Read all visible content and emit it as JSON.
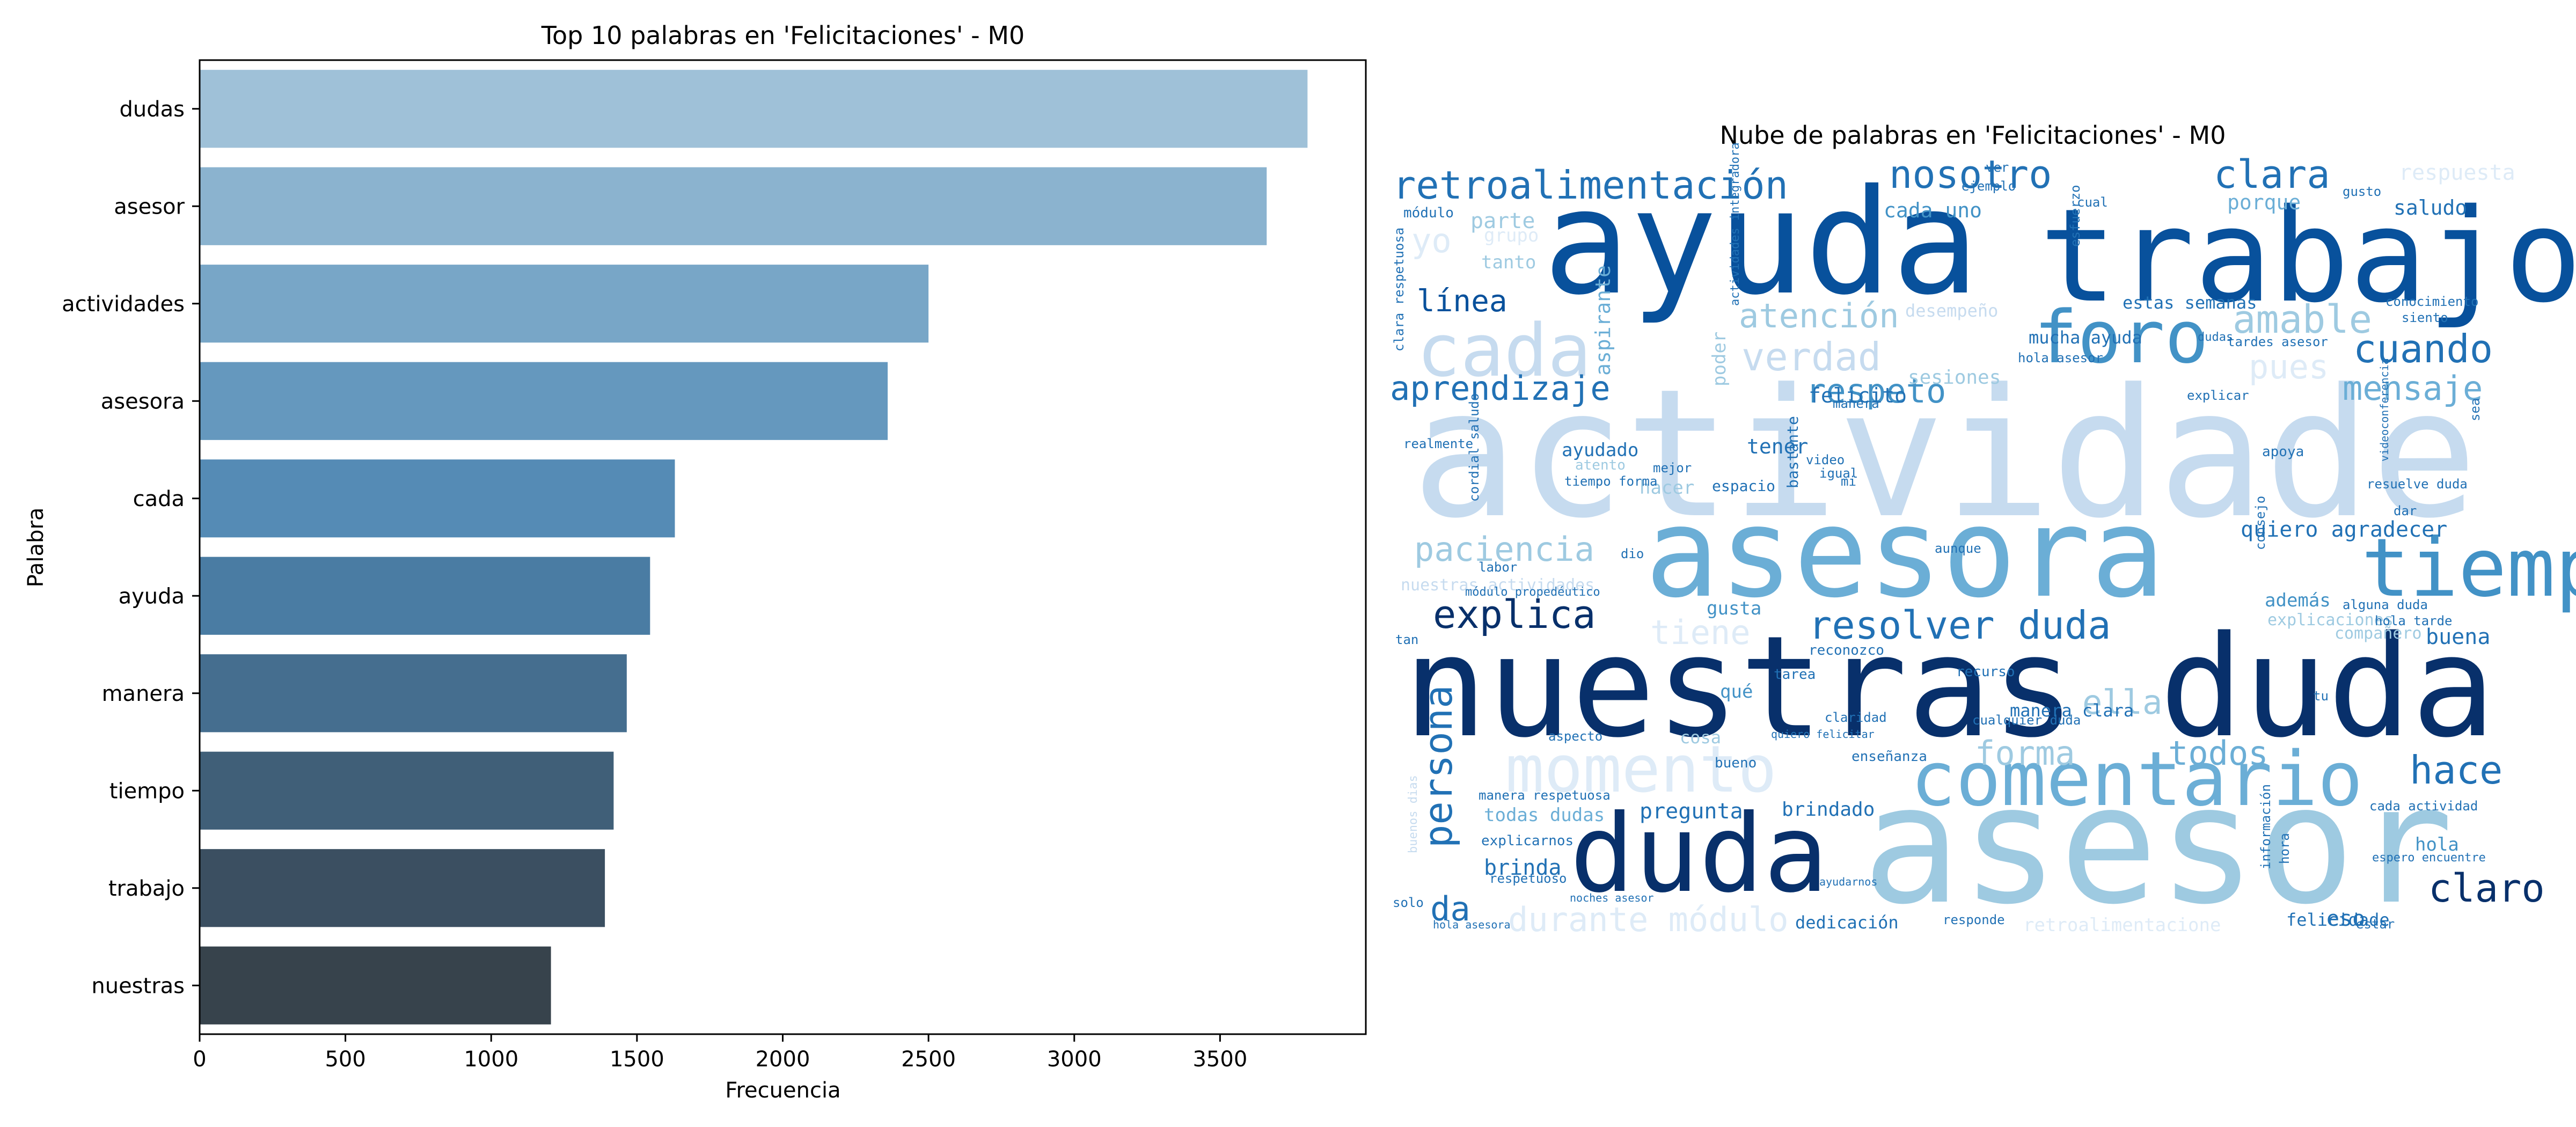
{
  "chart_data": [
    {
      "type": "bar",
      "orientation": "horizontal",
      "title": "Top 10 palabras en 'Felicitaciones' - M0",
      "xlabel": "Frecuencia",
      "ylabel": "Palabra",
      "xlim": [
        0,
        4000
      ],
      "xticks": [
        0,
        500,
        1000,
        1500,
        2000,
        2500,
        3000,
        3500
      ],
      "categories": [
        "dudas",
        "asesor",
        "actividades",
        "asesora",
        "cada",
        "ayuda",
        "manera",
        "tiempo",
        "trabajo",
        "nuestras"
      ],
      "values": [
        3800,
        3660,
        2500,
        2360,
        1630,
        1545,
        1465,
        1420,
        1390,
        1205
      ],
      "colors": [
        "#9fc1d8",
        "#8bb3cf",
        "#78a6c7",
        "#6598be",
        "#558bb5",
        "#4a7ca3",
        "#456e8f",
        "#405f78",
        "#3b4f61",
        "#37434c"
      ],
      "grid": false
    },
    {
      "type": "wordcloud",
      "title": "Nube de palabras en 'Felicitaciones' - M0",
      "colormap": "Blues",
      "words": [
        {
          "text": "actividade",
          "weight": 1.0,
          "color": "#c6dbef"
        },
        {
          "text": "nuestras duda",
          "weight": 0.95,
          "color": "#08306b"
        },
        {
          "text": "ayuda",
          "weight": 0.9,
          "color": "#08519c"
        },
        {
          "text": "trabajo",
          "weight": 0.88,
          "color": "#08519c"
        },
        {
          "text": "asesor",
          "weight": 0.85,
          "color": "#9ecae1"
        },
        {
          "text": "asesora",
          "weight": 0.8,
          "color": "#6baed6"
        },
        {
          "text": "duda",
          "weight": 0.72,
          "color": "#08306b"
        },
        {
          "text": "tiempo",
          "weight": 0.6,
          "color": "#4292c6"
        },
        {
          "text": "comentario",
          "weight": 0.5,
          "color": "#6baed6"
        },
        {
          "text": "foro",
          "weight": 0.45,
          "color": "#4292c6"
        },
        {
          "text": "cada",
          "weight": 0.45,
          "color": "#c6dbef"
        },
        {
          "text": "momento",
          "weight": 0.4,
          "color": "#deebf7"
        },
        {
          "text": "retroalimentación",
          "weight": 0.3,
          "color": "#2171b5"
        },
        {
          "text": "nosotro",
          "weight": 0.28,
          "color": "#2171b5"
        },
        {
          "text": "clara",
          "weight": 0.26,
          "color": "#2171b5"
        },
        {
          "text": "persona",
          "weight": 0.26,
          "color": "#2171b5"
        },
        {
          "text": "claro",
          "weight": 0.26,
          "color": "#08306b"
        },
        {
          "text": "explica",
          "weight": 0.26,
          "color": "#08306b"
        },
        {
          "text": "resolver duda",
          "weight": 0.26,
          "color": "#2171b5"
        },
        {
          "text": "cuando",
          "weight": 0.24,
          "color": "#2171b5"
        },
        {
          "text": "verdad",
          "weight": 0.24,
          "color": "#c6dbef"
        },
        {
          "text": "amable",
          "weight": 0.24,
          "color": "#9ecae1"
        },
        {
          "text": "hace",
          "weight": 0.24,
          "color": "#2171b5"
        },
        {
          "text": "todos",
          "weight": 0.22,
          "color": "#6baed6"
        },
        {
          "text": "forma",
          "weight": 0.22,
          "color": "#9ecae1"
        },
        {
          "text": "ella",
          "weight": 0.22,
          "color": "#9ecae1"
        },
        {
          "text": "da",
          "weight": 0.22,
          "color": "#2171b5"
        },
        {
          "text": "durante módulo",
          "weight": 0.22,
          "color": "#deebf7"
        },
        {
          "text": "paciencia",
          "weight": 0.22,
          "color": "#9ecae1"
        },
        {
          "text": "tiene",
          "weight": 0.22,
          "color": "#deebf7"
        },
        {
          "text": "aprendizaje",
          "weight": 0.22,
          "color": "#2171b5"
        },
        {
          "text": "respeto",
          "weight": 0.2,
          "color": "#4292c6"
        },
        {
          "text": "atención",
          "weight": 0.2,
          "color": "#9ecae1"
        },
        {
          "text": "mensaje",
          "weight": 0.2,
          "color": "#6baed6"
        },
        {
          "text": "pues",
          "weight": 0.2,
          "color": "#deebf7"
        },
        {
          "text": "línea",
          "weight": 0.2,
          "color": "#08519c"
        },
        {
          "text": "yo",
          "weight": 0.2,
          "color": "#deebf7"
        },
        {
          "text": "quiero agradecer",
          "weight": 0.14,
          "color": "#2171b5"
        },
        {
          "text": "brinda",
          "weight": 0.14,
          "color": "#2171b5"
        },
        {
          "text": "pregunta",
          "weight": 0.14,
          "color": "#2171b5"
        },
        {
          "text": "brindado",
          "weight": 0.13,
          "color": "#2171b5"
        },
        {
          "text": "buena",
          "weight": 0.13,
          "color": "#2171b5"
        },
        {
          "text": "felicito",
          "weight": 0.12,
          "color": "#2171b5"
        },
        {
          "text": "tener",
          "weight": 0.12,
          "color": "#2171b5"
        },
        {
          "text": "ayudado",
          "weight": 0.12,
          "color": "#2171b5"
        },
        {
          "text": "sesiones",
          "weight": 0.12,
          "color": "#9ecae1"
        },
        {
          "text": "cada uno",
          "weight": 0.12,
          "color": "#4292c6"
        },
        {
          "text": "estas semanas",
          "weight": 0.1,
          "color": "#2171b5"
        },
        {
          "text": "mucha ayuda",
          "weight": 0.1,
          "color": "#2171b5"
        },
        {
          "text": "saludo",
          "weight": 0.1,
          "color": "#2171b5"
        },
        {
          "text": "porque",
          "weight": 0.1,
          "color": "#6baed6"
        },
        {
          "text": "respuesta",
          "weight": 0.1,
          "color": "#deebf7"
        },
        {
          "text": "parte",
          "weight": 0.1,
          "color": "#9ecae1"
        },
        {
          "text": "tanto",
          "weight": 0.1,
          "color": "#9ecae1"
        },
        {
          "text": "hacer",
          "weight": 0.1,
          "color": "#9ecae1"
        },
        {
          "text": "gusta",
          "weight": 0.1,
          "color": "#4292c6"
        },
        {
          "text": "manera clara",
          "weight": 0.1,
          "color": "#2171b5"
        },
        {
          "text": "todas dudas",
          "weight": 0.1,
          "color": "#6baed6"
        },
        {
          "text": "dedicación",
          "weight": 0.1,
          "color": "#2171b5"
        },
        {
          "text": "felicidade",
          "weight": 0.1,
          "color": "#2171b5"
        },
        {
          "text": "eso",
          "weight": 0.1,
          "color": "#2171b5"
        },
        {
          "text": "nuestras actividades",
          "weight": 0.08,
          "color": "#c6dbef"
        },
        {
          "text": "desempeño",
          "weight": 0.08,
          "color": "#c6dbef"
        },
        {
          "text": "grupo",
          "weight": 0.08,
          "color": "#deebf7"
        },
        {
          "text": "hola",
          "weight": 0.08,
          "color": "#4292c6"
        },
        {
          "text": "además",
          "weight": 0.08,
          "color": "#4292c6"
        },
        {
          "text": "explicaciones",
          "weight": 0.08,
          "color": "#9ecae1"
        },
        {
          "text": "compañero",
          "weight": 0.08,
          "color": "#9ecae1"
        },
        {
          "text": "retroalimentacione",
          "weight": 0.08,
          "color": "#deebf7"
        },
        {
          "text": "qué",
          "weight": 0.08,
          "color": "#4292c6"
        },
        {
          "text": "cosa",
          "weight": 0.08,
          "color": "#9ecae1"
        },
        {
          "text": "espacio",
          "weight": 0.07,
          "color": "#2171b5"
        },
        {
          "text": "bastante",
          "weight": 0.07,
          "color": "#2171b5"
        },
        {
          "text": "aspirante",
          "weight": 0.07,
          "color": "#6baed6"
        },
        {
          "text": "poder",
          "weight": 0.07,
          "color": "#9ecae1"
        },
        {
          "text": "módulo",
          "weight": 0.06,
          "color": "#2171b5"
        },
        {
          "text": "realmente",
          "weight": 0.06,
          "color": "#2171b5"
        },
        {
          "text": "atento",
          "weight": 0.06,
          "color": "#9ecae1"
        },
        {
          "text": "tiempo forma",
          "weight": 0.06,
          "color": "#2171b5"
        },
        {
          "text": "clara respetuosa",
          "weight": 0.06,
          "color": "#2171b5"
        },
        {
          "text": "cordial saludo",
          "weight": 0.06,
          "color": "#2171b5"
        },
        {
          "text": "manera respetuosa",
          "weight": 0.06,
          "color": "#2171b5"
        },
        {
          "text": "explicarnos",
          "weight": 0.06,
          "color": "#2171b5"
        },
        {
          "text": "respetuoso",
          "weight": 0.06,
          "color": "#2171b5"
        },
        {
          "text": "aspecto",
          "weight": 0.06,
          "color": "#2171b5"
        },
        {
          "text": "buenos dias",
          "weight": 0.06,
          "color": "#c6dbef"
        },
        {
          "text": "bueno",
          "weight": 0.06,
          "color": "#2171b5"
        },
        {
          "text": "enseñanza",
          "weight": 0.06,
          "color": "#2171b5"
        },
        {
          "text": "reconozco",
          "weight": 0.06,
          "color": "#2171b5"
        },
        {
          "text": "recurso",
          "weight": 0.06,
          "color": "#2171b5"
        },
        {
          "text": "tarea",
          "weight": 0.06,
          "color": "#2171b5"
        },
        {
          "text": "cualquier duda",
          "weight": 0.06,
          "color": "#2171b5"
        },
        {
          "text": "alguna duda",
          "weight": 0.06,
          "color": "#2171b5"
        },
        {
          "text": "hola tarde",
          "weight": 0.06,
          "color": "#2171b5"
        },
        {
          "text": "resuelve duda",
          "weight": 0.06,
          "color": "#2171b5"
        },
        {
          "text": "apoya",
          "weight": 0.06,
          "color": "#2171b5"
        },
        {
          "text": "cada actividad",
          "weight": 0.06,
          "color": "#2171b5"
        },
        {
          "text": "espero encuentre",
          "weight": 0.06,
          "color": "#2171b5"
        },
        {
          "text": "estar",
          "weight": 0.06,
          "color": "#2171b5"
        },
        {
          "text": "solo",
          "weight": 0.06,
          "color": "#2171b5"
        },
        {
          "text": "información",
          "weight": 0.06,
          "color": "#2171b5"
        },
        {
          "text": "hora",
          "weight": 0.06,
          "color": "#2171b5"
        },
        {
          "text": "responde",
          "weight": 0.05,
          "color": "#2171b5"
        },
        {
          "text": "conocimiento",
          "weight": 0.05,
          "color": "#2171b5"
        },
        {
          "text": "siento",
          "weight": 0.05,
          "color": "#2171b5"
        },
        {
          "text": "tardes asesor",
          "weight": 0.05,
          "color": "#2171b5"
        },
        {
          "text": "hola asesor",
          "weight": 0.05,
          "color": "#2171b5"
        },
        {
          "text": "esfuerzo",
          "weight": 0.05,
          "color": "#2171b5"
        },
        {
          "text": "ejemplo",
          "weight": 0.05,
          "color": "#2171b5"
        },
        {
          "text": "cual",
          "weight": 0.05,
          "color": "#2171b5"
        },
        {
          "text": "gusto",
          "weight": 0.05,
          "color": "#2171b5"
        },
        {
          "text": "ver",
          "weight": 0.05,
          "color": "#2171b5"
        },
        {
          "text": "dio",
          "weight": 0.05,
          "color": "#2171b5"
        },
        {
          "text": "labor",
          "weight": 0.05,
          "color": "#2171b5"
        },
        {
          "text": "aunque",
          "weight": 0.05,
          "color": "#2171b5"
        },
        {
          "text": "consejo",
          "weight": 0.05,
          "color": "#2171b5"
        },
        {
          "text": "sea",
          "weight": 0.05,
          "color": "#2171b5"
        },
        {
          "text": "dar",
          "weight": 0.05,
          "color": "#2171b5"
        },
        {
          "text": "tan",
          "weight": 0.05,
          "color": "#2171b5"
        },
        {
          "text": "tu",
          "weight": 0.05,
          "color": "#2171b5"
        },
        {
          "text": "mi",
          "weight": 0.05,
          "color": "#2171b5"
        },
        {
          "text": "igual",
          "weight": 0.05,
          "color": "#2171b5"
        },
        {
          "text": "mejor",
          "weight": 0.05,
          "color": "#2171b5"
        },
        {
          "text": "claridad",
          "weight": 0.05,
          "color": "#2171b5"
        },
        {
          "text": "manera",
          "weight": 0.05,
          "color": "#2171b5"
        },
        {
          "text": "explicar",
          "weight": 0.05,
          "color": "#2171b5"
        },
        {
          "text": "video",
          "weight": 0.05,
          "color": "#2171b5"
        },
        {
          "text": "actividades integradora",
          "weight": 0.05,
          "color": "#2171b5"
        },
        {
          "text": "videoconferencia",
          "weight": 0.05,
          "color": "#2171b5"
        },
        {
          "text": "módulo propedéutico",
          "weight": 0.05,
          "color": "#2171b5"
        },
        {
          "text": "noches asesor",
          "weight": 0.05,
          "color": "#2171b5"
        },
        {
          "text": "hola asesora",
          "weight": 0.05,
          "color": "#2171b5"
        },
        {
          "text": "ayudarnos",
          "weight": 0.05,
          "color": "#2171b5"
        },
        {
          "text": "quiero felicitar",
          "weight": 0.05,
          "color": "#2171b5"
        },
        {
          "text": "dudas",
          "weight": 0.05,
          "color": "#2171b5"
        }
      ]
    }
  ]
}
